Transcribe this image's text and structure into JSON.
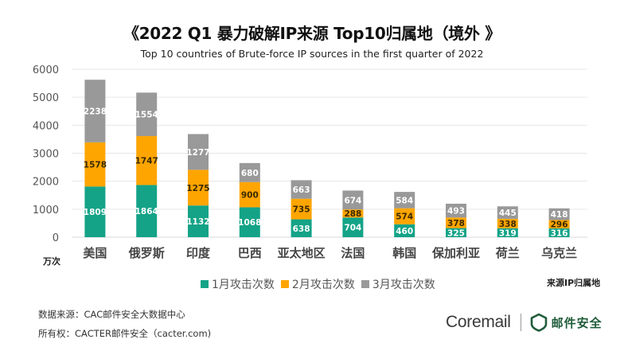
{
  "chart_data": {
    "type": "bar",
    "stacked": true,
    "title": "《2022 Q1 暴力破解IP来源 Top10归属地（境外 》",
    "subtitle": "Top 10 countries of Brute-force IP sources in the first quarter of 2022",
    "xlabel": "来源IP归属地",
    "ylabel": "万次",
    "ylim": [
      0,
      6000
    ],
    "yticks": [
      0,
      1000,
      2000,
      3000,
      4000,
      5000,
      6000
    ],
    "grid": true,
    "legend_position": "bottom",
    "categories": [
      "美国",
      "俄罗斯",
      "印度",
      "巴西",
      "亚太地区",
      "法国",
      "韩国",
      "保加利亚",
      "荷兰",
      "乌克兰"
    ],
    "series": [
      {
        "name": "1月攻击次数",
        "color": "#14a387",
        "label_color": "#ffffff",
        "values": [
          1809,
          1864,
          1132,
          1068,
          638,
          704,
          460,
          325,
          319,
          316
        ]
      },
      {
        "name": "2月攻击次数",
        "color": "#ffa500",
        "label_color": "#3a2a00",
        "values": [
          1578,
          1747,
          1275,
          900,
          735,
          288,
          574,
          378,
          338,
          296
        ]
      },
      {
        "name": "3月攻击次数",
        "color": "#999999",
        "label_color": "#ffffff",
        "values": [
          2238,
          1554,
          1277,
          680,
          663,
          674,
          584,
          493,
          445,
          418
        ]
      }
    ]
  },
  "footer": {
    "source": "数据来源：CAC邮件安全大数据中心",
    "owner": "所有权：CACTER邮件安全（cacter.com)"
  },
  "logo": {
    "coremail": "Coremail",
    "brand": "邮件安全",
    "brand_color": "#1f5c3a"
  }
}
